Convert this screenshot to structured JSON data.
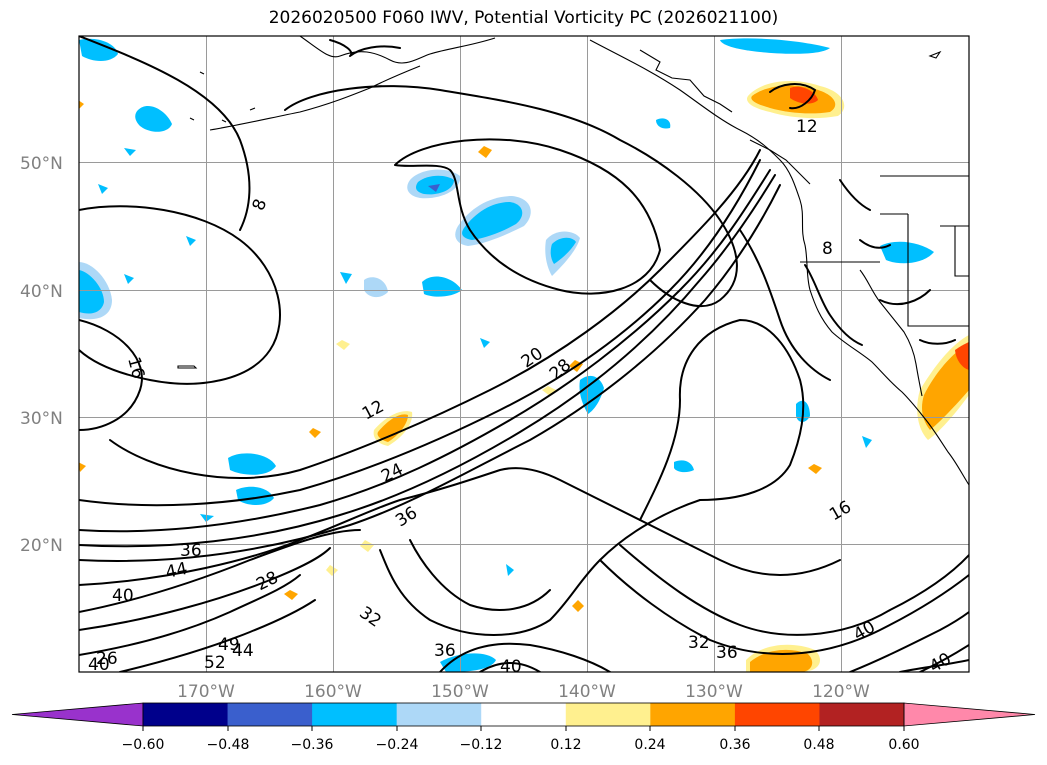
{
  "title": "2026020500 F060 IWV, Potential Vorticity PC (2026021100)",
  "lat_labels": [
    "50°N",
    "40°N",
    "30°N",
    "20°N"
  ],
  "lon_labels": [
    "170°W",
    "160°W",
    "150°W",
    "140°W",
    "130°W",
    "120°W"
  ],
  "colorbar": {
    "ticks": [
      "−0.60",
      "−0.48",
      "−0.36",
      "−0.24",
      "−0.12",
      "0.12",
      "0.24",
      "0.36",
      "0.48",
      "0.60"
    ],
    "colors": [
      "#9932cc",
      "#00008b",
      "#3a5fcd",
      "#00bfff",
      "#add8f7",
      "#ffffff",
      "#fff08f",
      "#ffa500",
      "#ff4500",
      "#b22222",
      "#ff88aa"
    ]
  },
  "contour_labels": [
    "8",
    "8",
    "12",
    "12",
    "16",
    "16",
    "20",
    "24",
    "28",
    "28",
    "32",
    "32",
    "36",
    "36",
    "36",
    "36",
    "40",
    "40",
    "40",
    "40",
    "44",
    "44",
    "49",
    "52",
    "26",
    "40"
  ]
}
